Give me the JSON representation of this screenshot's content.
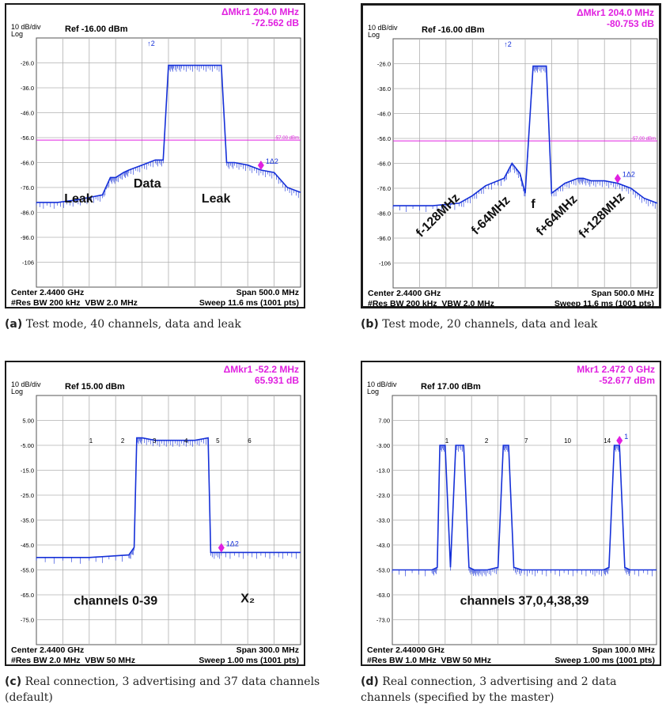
{
  "chart_data": [
    {
      "id": "a",
      "type": "line",
      "scale": "10 dB/div",
      "scale_log": "Log",
      "ref": "Ref -16.00 dBm",
      "marker_line1": "ΔMkr1 204.0 MHz",
      "marker_line2": "-72.562 dB",
      "ylim": [
        -116,
        -16
      ],
      "yticks": [
        "-26.0",
        "-36.0",
        "-46.0",
        "-56.0",
        "-66.0",
        "-76.0",
        "-86.0",
        "-96.0",
        "-106"
      ],
      "threshold": {
        "value": -57,
        "label": "-57.00 dBm"
      },
      "center": "Center 2.4400 GHz",
      "span": "Span 500.0 MHz",
      "res_bw": "#Res BW 200 kHz",
      "vbw": "VBW 2.0 MHz",
      "sweep": "Sweep  11.6 ms (1001 pts)",
      "marker_tag": "1Δ2",
      "top_marker": "2",
      "x": [
        0,
        8,
        15,
        20,
        25,
        28,
        30,
        33,
        35,
        40,
        45,
        48,
        50,
        52,
        55,
        60,
        65,
        70,
        72,
        75,
        80,
        85,
        90,
        95,
        100
      ],
      "y": [
        -82,
        -82,
        -81,
        -80,
        -79,
        -72,
        -72,
        -70,
        -69,
        -67,
        -65,
        -65,
        -27,
        -27,
        -27,
        -27,
        -27,
        -27,
        -66,
        -66,
        -67,
        -69,
        -70,
        -76,
        -78
      ],
      "annotations": [
        {
          "text": "Leak",
          "xf": 0.16,
          "yf": 0.66
        },
        {
          "text": "Data",
          "xf": 0.42,
          "yf": 0.6
        },
        {
          "text": "Leak",
          "xf": 0.68,
          "yf": 0.66
        }
      ]
    },
    {
      "id": "b",
      "type": "line",
      "scale": "10 dB/div",
      "scale_log": "Log",
      "ref": "Ref -16.00 dBm",
      "marker_line1": "ΔMkr1 204.0 MHz",
      "marker_line2": "-80.753 dB",
      "ylim": [
        -116,
        -16
      ],
      "yticks": [
        "-26.0",
        "-36.0",
        "-46.0",
        "-56.0",
        "-66.0",
        "-76.0",
        "-86.0",
        "-96.0",
        "-106"
      ],
      "threshold": {
        "value": -57,
        "label": "-57.00 dBm"
      },
      "center": "Center 2.4400 GHz",
      "span": "Span 500.0 MHz",
      "res_bw": "#Res BW 200 kHz",
      "vbw": "VBW 2.0 MHz",
      "sweep": "Sweep  11.6 ms (1001 pts)",
      "marker_tag": "1Δ2",
      "top_marker": "2",
      "x": [
        0,
        15,
        25,
        30,
        35,
        42,
        45,
        48,
        50,
        53,
        55,
        58,
        60,
        65,
        70,
        72,
        75,
        80,
        85,
        90,
        95,
        100
      ],
      "y": [
        -83,
        -83,
        -82,
        -79,
        -75,
        -72,
        -66,
        -70,
        -78,
        -27,
        -27,
        -27,
        -78,
        -74,
        -72,
        -72,
        -73,
        -73,
        -74,
        -76,
        -80,
        -82
      ],
      "annotations": [
        {
          "text": "f-128MHz",
          "xf": 0.18,
          "yf": 0.72,
          "rot": -45
        },
        {
          "text": "f-64MHz",
          "xf": 0.38,
          "yf": 0.72,
          "rot": -45
        },
        {
          "text": "f",
          "xf": 0.53,
          "yf": 0.68
        },
        {
          "text": "f+64MHz",
          "xf": 0.63,
          "yf": 0.72,
          "rot": -45
        },
        {
          "text": "f+128MHz",
          "xf": 0.8,
          "yf": 0.72,
          "rot": -45
        }
      ]
    },
    {
      "id": "c",
      "type": "line",
      "scale": "10 dB/div",
      "scale_log": "Log",
      "ref": "Ref 15.00 dBm",
      "marker_line1": "ΔMkr1 -52.2 MHz",
      "marker_line2": "65.931 dB",
      "ylim": [
        -85,
        15
      ],
      "yticks": [
        "5.00",
        "-5.00",
        "-15.0",
        "-25.0",
        "-35.0",
        "-45.0",
        "-55.0",
        "-65.0",
        "-75.0"
      ],
      "center": "Center 2.4400 GHz",
      "span": "Span 300.0 MHz",
      "res_bw": "#Res BW 2.0 MHz",
      "vbw": "VBW 50 MHz",
      "sweep": "Sweep  1.00 ms (1001 pts)",
      "marker_tag": "1Δ2",
      "x": [
        0,
        20,
        35,
        37,
        38,
        40,
        45,
        50,
        55,
        60,
        65,
        66,
        70,
        80,
        90,
        100
      ],
      "y": [
        -50,
        -50,
        -49,
        -46,
        -2,
        -2,
        -3,
        -3,
        -3,
        -3,
        -2,
        -48,
        -48,
        -48,
        -48,
        -48
      ],
      "annotations": [
        {
          "text": "channels 0-39",
          "xf": 0.3,
          "yf": 0.84
        },
        {
          "text": "X₂",
          "xf": 0.8,
          "yf": 0.83
        }
      ],
      "peak_labels": [
        "1",
        "2",
        "3",
        "4",
        "5",
        "6"
      ]
    },
    {
      "id": "d",
      "type": "line",
      "scale": "10 dB/div",
      "scale_log": "Log",
      "ref": "Ref 17.00 dBm",
      "marker_line1": "Mkr1 2.472 0 GHz",
      "marker_line2": "-52.677 dBm",
      "ylim": [
        -83,
        17
      ],
      "yticks": [
        "7.00",
        "-3.00",
        "-13.0",
        "-23.0",
        "-33.0",
        "-43.0",
        "-53.0",
        "-63.0",
        "-73.0"
      ],
      "center": "Center 2.44000 GHz",
      "span": "Span 100.0 MHz",
      "res_bw": "#Res BW 1.0 MHz",
      "vbw": "VBW 50 MHz",
      "sweep": "Sweep  1.00 ms (1001 pts)",
      "marker_tag": "1",
      "x": [
        0,
        15,
        17,
        18,
        20,
        22,
        24,
        27,
        29,
        31,
        33,
        36,
        40,
        42,
        44,
        46,
        49,
        55,
        65,
        75,
        80,
        82,
        84,
        86,
        88,
        90,
        100
      ],
      "y": [
        -53,
        -53,
        -52,
        -3,
        -3,
        -52,
        -3,
        -3,
        -52,
        -53,
        -53,
        -53,
        -52,
        -3,
        -3,
        -52,
        -53,
        -53,
        -53,
        -53,
        -53,
        -52,
        -3,
        -3,
        -52,
        -53,
        -53
      ],
      "annotations": [
        {
          "text": "channels 37,0,4,38,39",
          "xf": 0.5,
          "yf": 0.84
        }
      ],
      "peak_labels": [
        "1",
        "2",
        "7",
        "10",
        "14"
      ]
    }
  ],
  "captions": [
    {
      "tag": "(a)",
      "text": "Test mode, 40 channels, data and leak"
    },
    {
      "tag": "(b)",
      "text": "Test mode, 20 channels, data and leak"
    },
    {
      "tag": "(c)",
      "text": "Real connection, 3 advertising and 37 data channels (default)"
    },
    {
      "tag": "(d)",
      "text": "Real connection, 3 advertising and 2 data channels (specified by the master)"
    }
  ],
  "colors": {
    "trace": "#1530d8",
    "marker": "#e020e0",
    "grid": "#b0b0b0"
  }
}
